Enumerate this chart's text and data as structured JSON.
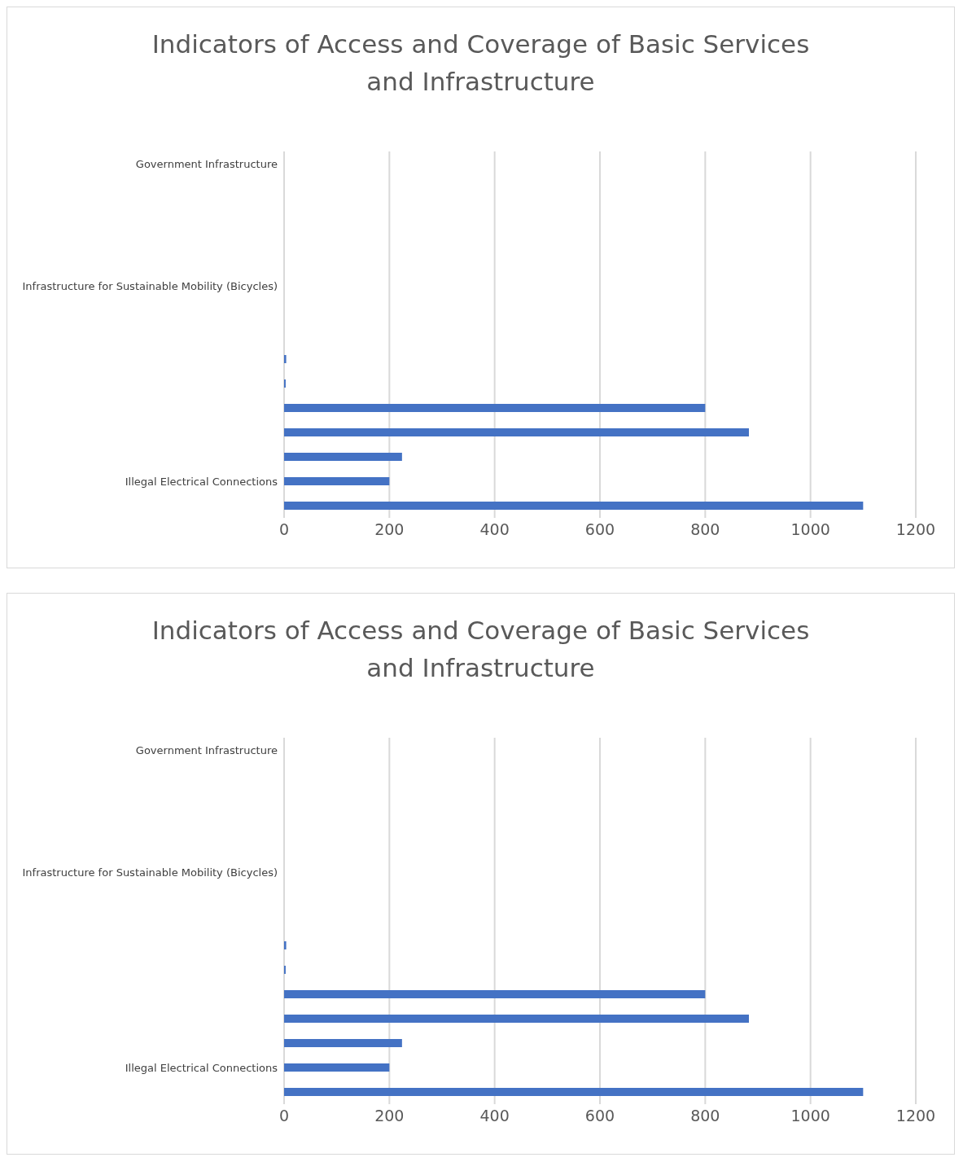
{
  "chart_data": [
    {
      "type": "bar",
      "orientation": "horizontal",
      "title": "Indicators of Access and Coverage of Basic Services and Infrastructure",
      "categories": [
        "Government Infrastructure",
        null,
        null,
        null,
        null,
        "Infrastructure for Sustainable Mobility (Bicycles)",
        null,
        null,
        null,
        null,
        null,
        null,
        null,
        "Illegal Electrical Connections",
        null
      ],
      "values": [
        0,
        0,
        0,
        0,
        0,
        0,
        0,
        0,
        4,
        3,
        800,
        883,
        224,
        200,
        1100
      ],
      "color": "#4472c4",
      "xlim": [
        0,
        1200
      ],
      "xticks": [
        0,
        200,
        400,
        600,
        800,
        1000,
        1200
      ],
      "grid": "x"
    },
    {
      "type": "bar",
      "orientation": "horizontal",
      "title": "Indicators of Access and Coverage of Basic Services and Infrastructure",
      "categories": [
        "Government Infrastructure",
        null,
        null,
        null,
        null,
        "Infrastructure for Sustainable Mobility (Bicycles)",
        null,
        null,
        null,
        null,
        null,
        null,
        null,
        "Illegal Electrical Connections",
        null
      ],
      "values": [
        0,
        0,
        0,
        0,
        0,
        0,
        0,
        0,
        4,
        3,
        800,
        883,
        224,
        200,
        1100
      ],
      "color": "#4472c4",
      "xlim": [
        0,
        1200
      ],
      "xticks": [
        0,
        200,
        400,
        600,
        800,
        1000,
        1200
      ],
      "grid": "x"
    }
  ]
}
